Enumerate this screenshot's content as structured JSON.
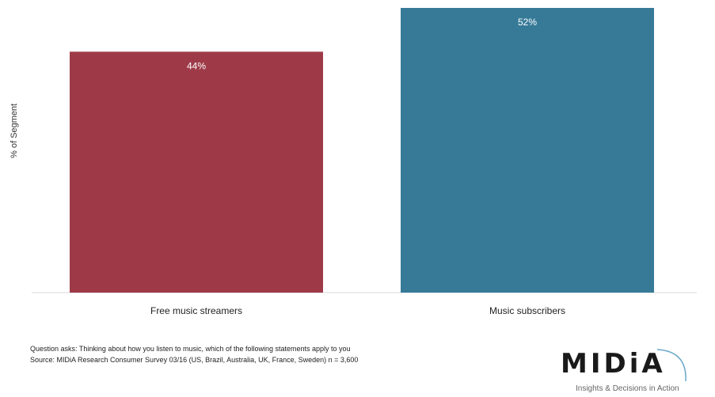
{
  "chart_data": {
    "type": "bar",
    "categories": [
      "Free music streamers",
      "Music subscribers"
    ],
    "values": [
      44,
      52
    ],
    "value_labels": [
      "44%",
      "52%"
    ],
    "colors": [
      "#9E3A48",
      "#377A98"
    ],
    "ylabel": "% of Segment",
    "ylim": [
      0,
      52
    ],
    "grid": false,
    "legend": "none"
  },
  "notes": {
    "question": "Question asks: Thinking about how you listen to music, which of the following statements apply to you",
    "source": "Source:  MIDiA Research Consumer Survey 03/16 (US, Brazil, Australia, UK, France, Sweden) n = 3,600"
  },
  "logo": {
    "wordmark": "MIDiA",
    "tagline": "Insights & Decisions in Action"
  }
}
